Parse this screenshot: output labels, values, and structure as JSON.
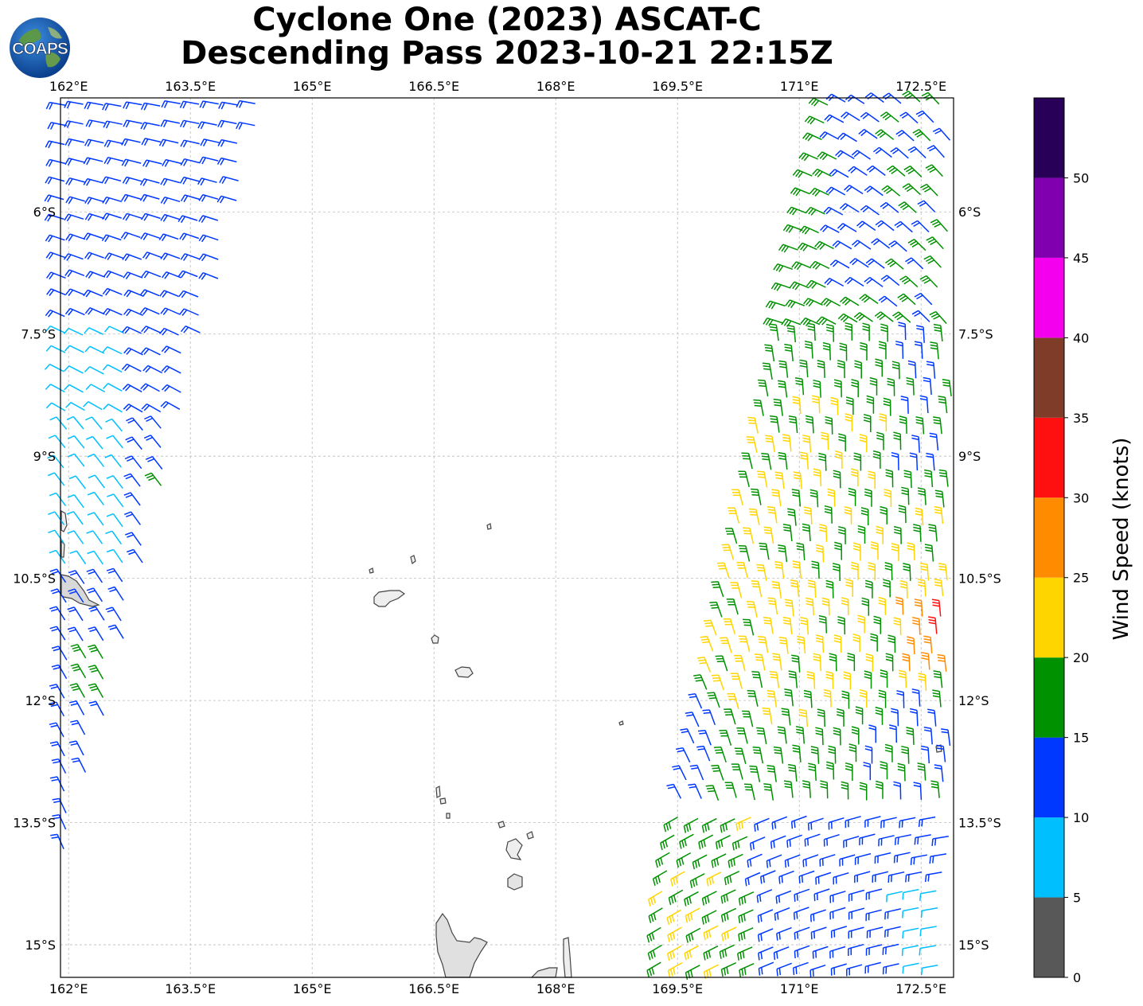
{
  "title": {
    "line1": "Cyclone One (2023) ASCAT-C",
    "line2": "Descending Pass 2023-10-21 22:15Z"
  },
  "logo": {
    "text": "COAPS",
    "icon": "globe-logo-icon"
  },
  "map": {
    "lon_range": [
      161.9,
      172.9
    ],
    "lat_range": [
      -4.6,
      -15.4
    ],
    "lon_ticks": [
      {
        "value": 162.0,
        "label": "162°E"
      },
      {
        "value": 163.5,
        "label": "163.5°E"
      },
      {
        "value": 165.0,
        "label": "165°E"
      },
      {
        "value": 166.5,
        "label": "166.5°E"
      },
      {
        "value": 168.0,
        "label": "168°E"
      },
      {
        "value": 169.5,
        "label": "169.5°E"
      },
      {
        "value": 171.0,
        "label": "171°E"
      },
      {
        "value": 172.5,
        "label": "172.5°E"
      }
    ],
    "lat_ticks": [
      {
        "value": -6.0,
        "label": "6°S"
      },
      {
        "value": -7.5,
        "label": "7.5°S"
      },
      {
        "value": -9.0,
        "label": "9°S"
      },
      {
        "value": -10.5,
        "label": "10.5°S"
      },
      {
        "value": -12.0,
        "label": "12°S"
      },
      {
        "value": -13.5,
        "label": "13.5°S"
      },
      {
        "value": -15.0,
        "label": "15°S"
      }
    ],
    "gridlines": true
  },
  "colorbar": {
    "label": "Wind Speed (knots)",
    "ticks": [
      "0",
      "5",
      "10",
      "15",
      "20",
      "25",
      "30",
      "35",
      "40",
      "45",
      "50"
    ],
    "bins": [
      {
        "min": 0,
        "max": 5,
        "color": "#585858"
      },
      {
        "min": 5,
        "max": 10,
        "color": "#00bfff"
      },
      {
        "min": 10,
        "max": 15,
        "color": "#0038ff"
      },
      {
        "min": 15,
        "max": 20,
        "color": "#009100"
      },
      {
        "min": 20,
        "max": 25,
        "color": "#ffd500"
      },
      {
        "min": 25,
        "max": 30,
        "color": "#ff8c00"
      },
      {
        "min": 30,
        "max": 35,
        "color": "#ff1010"
      },
      {
        "min": 35,
        "max": 40,
        "color": "#7f3c28"
      },
      {
        "min": 40,
        "max": 45,
        "color": "#f500ee"
      },
      {
        "min": 45,
        "max": 50,
        "color": "#8000b0"
      },
      {
        "min": 50,
        "max": 55,
        "color": "#290057"
      }
    ]
  }
}
